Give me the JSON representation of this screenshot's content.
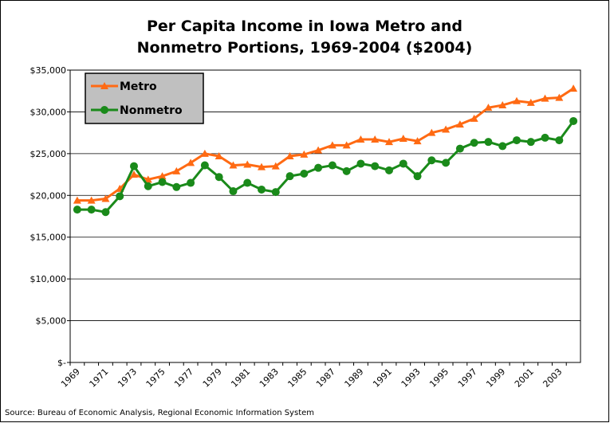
{
  "chart_data": {
    "type": "line",
    "title": [
      "Per Capita Income in Iowa Metro and",
      "Nonmetro Portions, 1969-2004 ($2004)"
    ],
    "source": "Source: Bureau of Economic Analysis, Regional Economic Information System",
    "categories": [
      "1969",
      null,
      "1971",
      null,
      "1973",
      null,
      "1975",
      null,
      "1977",
      null,
      "1979",
      null,
      "1981",
      null,
      "1983",
      null,
      "1985",
      null,
      "1987",
      null,
      "1989",
      null,
      "1991",
      null,
      "1993",
      null,
      "1995",
      null,
      "1997",
      null,
      "1999",
      null,
      "2001",
      null,
      "2003",
      null
    ],
    "series": [
      {
        "name": "Metro",
        "color": "#ff6a13",
        "values": [
          19400,
          19400,
          19600,
          20800,
          22500,
          21900,
          22300,
          22900,
          23900,
          25000,
          24700,
          23600,
          23700,
          23400,
          23500,
          24700,
          24900,
          25400,
          26000,
          26000,
          26700,
          26700,
          26400,
          26800,
          26500,
          27500,
          27900,
          28500,
          29200,
          30500,
          30800,
          31300,
          31100,
          31600,
          31700,
          32800
        ]
      },
      {
        "name": "Nonmetro",
        "color": "#1a8a1a",
        "values": [
          18300,
          18300,
          18000,
          19900,
          23500,
          21100,
          21600,
          21000,
          21500,
          23600,
          22200,
          20500,
          21500,
          20700,
          20400,
          22300,
          22600,
          23300,
          23600,
          22900,
          23800,
          23500,
          23000,
          23800,
          22300,
          24200,
          23900,
          25600,
          26300,
          26400,
          25900,
          26600,
          26400,
          26900,
          26600,
          28900
        ]
      }
    ],
    "ylim": [
      0,
      35000
    ],
    "yticks": [
      {
        "value": 0,
        "label": "$-"
      },
      {
        "value": 5000,
        "label": "$5,000"
      },
      {
        "value": 10000,
        "label": "$10,000"
      },
      {
        "value": 15000,
        "label": "$15,000"
      },
      {
        "value": 20000,
        "label": "$20,000"
      },
      {
        "value": 25000,
        "label": "$25,000"
      },
      {
        "value": 30000,
        "label": "$30,000"
      },
      {
        "value": 35000,
        "label": "$35,000"
      }
    ],
    "grid": true,
    "legend": "upper left"
  }
}
